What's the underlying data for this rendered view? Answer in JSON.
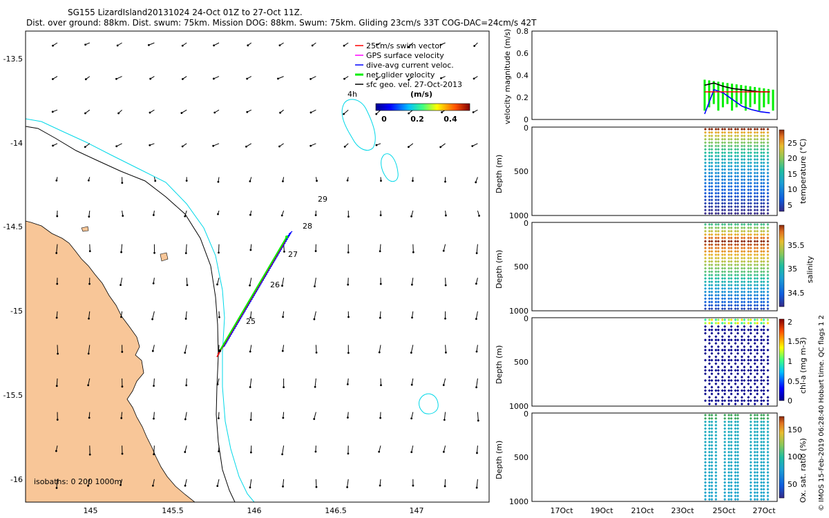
{
  "title_line1": "SG155 LizardIsland20131024 24-Oct 01Z to 27-Oct 11Z.",
  "title_line2": "Dist. over ground: 88km. Dist. swum: 75km. Mission DOG: 88km. Swum: 75km. Gliding 23cm/s 33T COG-DAC=24cm/s 42T",
  "credit": "© IMOS 15-Feb-2019 06:28:40 Hobart time. QC flags 1  2",
  "map": {
    "legend": [
      {
        "label": "25cm/s swim vector",
        "color": "#ff0000"
      },
      {
        "label": "GPS surface velocity",
        "color": "#ff00ff"
      },
      {
        "label": "dive-avg current veloc.",
        "color": "#0000ff"
      },
      {
        "label": "net glider velocity",
        "color": "#00ee00"
      },
      {
        "label": "sfc geo. vel. 27-Oct-2013",
        "color": "#000000"
      }
    ],
    "colorbar": {
      "unit": "(m/s)",
      "ticks": [
        "0",
        "0.2",
        "0.4"
      ],
      "range": [
        0,
        0.5
      ]
    },
    "label_4h": "4h",
    "isobaths_label": "isobaths: 0   200  1000m",
    "day_labels": [
      "25",
      "26",
      "27",
      "28",
      "29"
    ],
    "x_ticks": [
      "145",
      "145.5",
      "146",
      "146.5",
      "147"
    ],
    "y_ticks": [
      "-13.5",
      "-14",
      "-14.5",
      "-15",
      "-15.5",
      "-16"
    ],
    "xlim": [
      144.6,
      147.45
    ],
    "ylim": [
      -16.14,
      -13.35
    ],
    "colors": {
      "land": "#f8c698",
      "isobath_200": "#000000",
      "isobath_1000": "#00d8e8"
    }
  },
  "panels": {
    "x_ticks": [
      "17Oct",
      "19Oct",
      "21Oct",
      "23Oct",
      "25Oct",
      "27Oct"
    ],
    "velocity": {
      "ylabel": "velocity magnitude (m/s)",
      "y_ticks": [
        "0",
        "0.2",
        "0.4",
        "0.6",
        "0.8"
      ]
    },
    "temperature": {
      "ylabel": "Depth (m)",
      "cb_label": "temperature (°C)",
      "y_ticks": [
        "0",
        "500",
        "1000"
      ],
      "cb_ticks": [
        "5",
        "10",
        "15",
        "20",
        "25"
      ]
    },
    "salinity": {
      "ylabel": "Depth (m)",
      "cb_label": "salinity",
      "y_ticks": [
        "0",
        "500",
        "1000"
      ],
      "cb_ticks": [
        "34.5",
        "35",
        "35.5"
      ]
    },
    "chla": {
      "ylabel": "Depth (m)",
      "cb_label": "chl-a (mg m-3)",
      "y_ticks": [
        "0",
        "500",
        "1000"
      ],
      "cb_ticks": [
        "0",
        "0.5",
        "1",
        "1.5",
        "2"
      ]
    },
    "oxygen": {
      "ylabel": "Depth (m)",
      "cb_label": "Ox. sat. ratio (%)",
      "y_ticks": [
        "0",
        "500",
        "1000"
      ],
      "cb_ticks": [
        "50",
        "100",
        "150"
      ]
    }
  },
  "chart_data": [
    {
      "type": "scatter",
      "title": "SG155 LizardIsland20131024 24-Oct 01Z to 27-Oct 11Z.",
      "xlim": [
        144.6,
        147.45
      ],
      "ylim": [
        -16.14,
        -13.35
      ],
      "track": {
        "start": [
          145.8,
          -15.24
        ],
        "end": [
          146.2,
          -14.57
        ],
        "day_labels": [
          "25",
          "26",
          "27",
          "28",
          "29"
        ]
      }
    },
    {
      "type": "line",
      "ylabel": "velocity magnitude (m/s)",
      "ylim": [
        0,
        0.8
      ],
      "x_ticks": [
        "17Oct",
        "19Oct",
        "21Oct",
        "23Oct",
        "25Oct",
        "27Oct"
      ],
      "series": [
        {
          "name": "net glider velocity",
          "values": [
            0.31,
            0.33,
            0.3,
            0.28,
            0.27,
            0.26,
            0.25,
            0.25
          ]
        },
        {
          "name": "dive-avg current veloc.",
          "values": [
            0.05,
            0.27,
            0.24,
            0.18,
            0.12,
            0.09,
            0.07,
            0.06
          ]
        },
        {
          "name": "25cm/s swim vector",
          "values": [
            0.25,
            0.25,
            0.25,
            0.25,
            0.25,
            0.25,
            0.25,
            0.25
          ]
        }
      ]
    },
    {
      "type": "heatmap",
      "ylabel": "Depth (m)",
      "zlabel": "temperature (°C)",
      "ylim": [
        1000,
        0
      ],
      "zlim": [
        3,
        29
      ],
      "surface_value": 28,
      "deep_value": 4
    },
    {
      "type": "heatmap",
      "ylabel": "Depth (m)",
      "zlabel": "salinity",
      "ylim": [
        1000,
        0
      ],
      "zlim": [
        34.3,
        35.9
      ],
      "surface_value": 35.4,
      "max_value": 35.8,
      "deep_value": 34.5
    },
    {
      "type": "heatmap",
      "ylabel": "Depth (m)",
      "zlabel": "chl-a (mg m-3)",
      "ylim": [
        1000,
        0
      ],
      "zlim": [
        0,
        2
      ],
      "max_value": 0.8,
      "deep_value": 0
    },
    {
      "type": "heatmap",
      "ylabel": "Depth (m)",
      "zlabel": "Ox. sat. ratio (%)",
      "ylim": [
        1000,
        0
      ],
      "zlim": [
        20,
        175
      ],
      "surface_value": 100,
      "deep_value": 80
    }
  ]
}
